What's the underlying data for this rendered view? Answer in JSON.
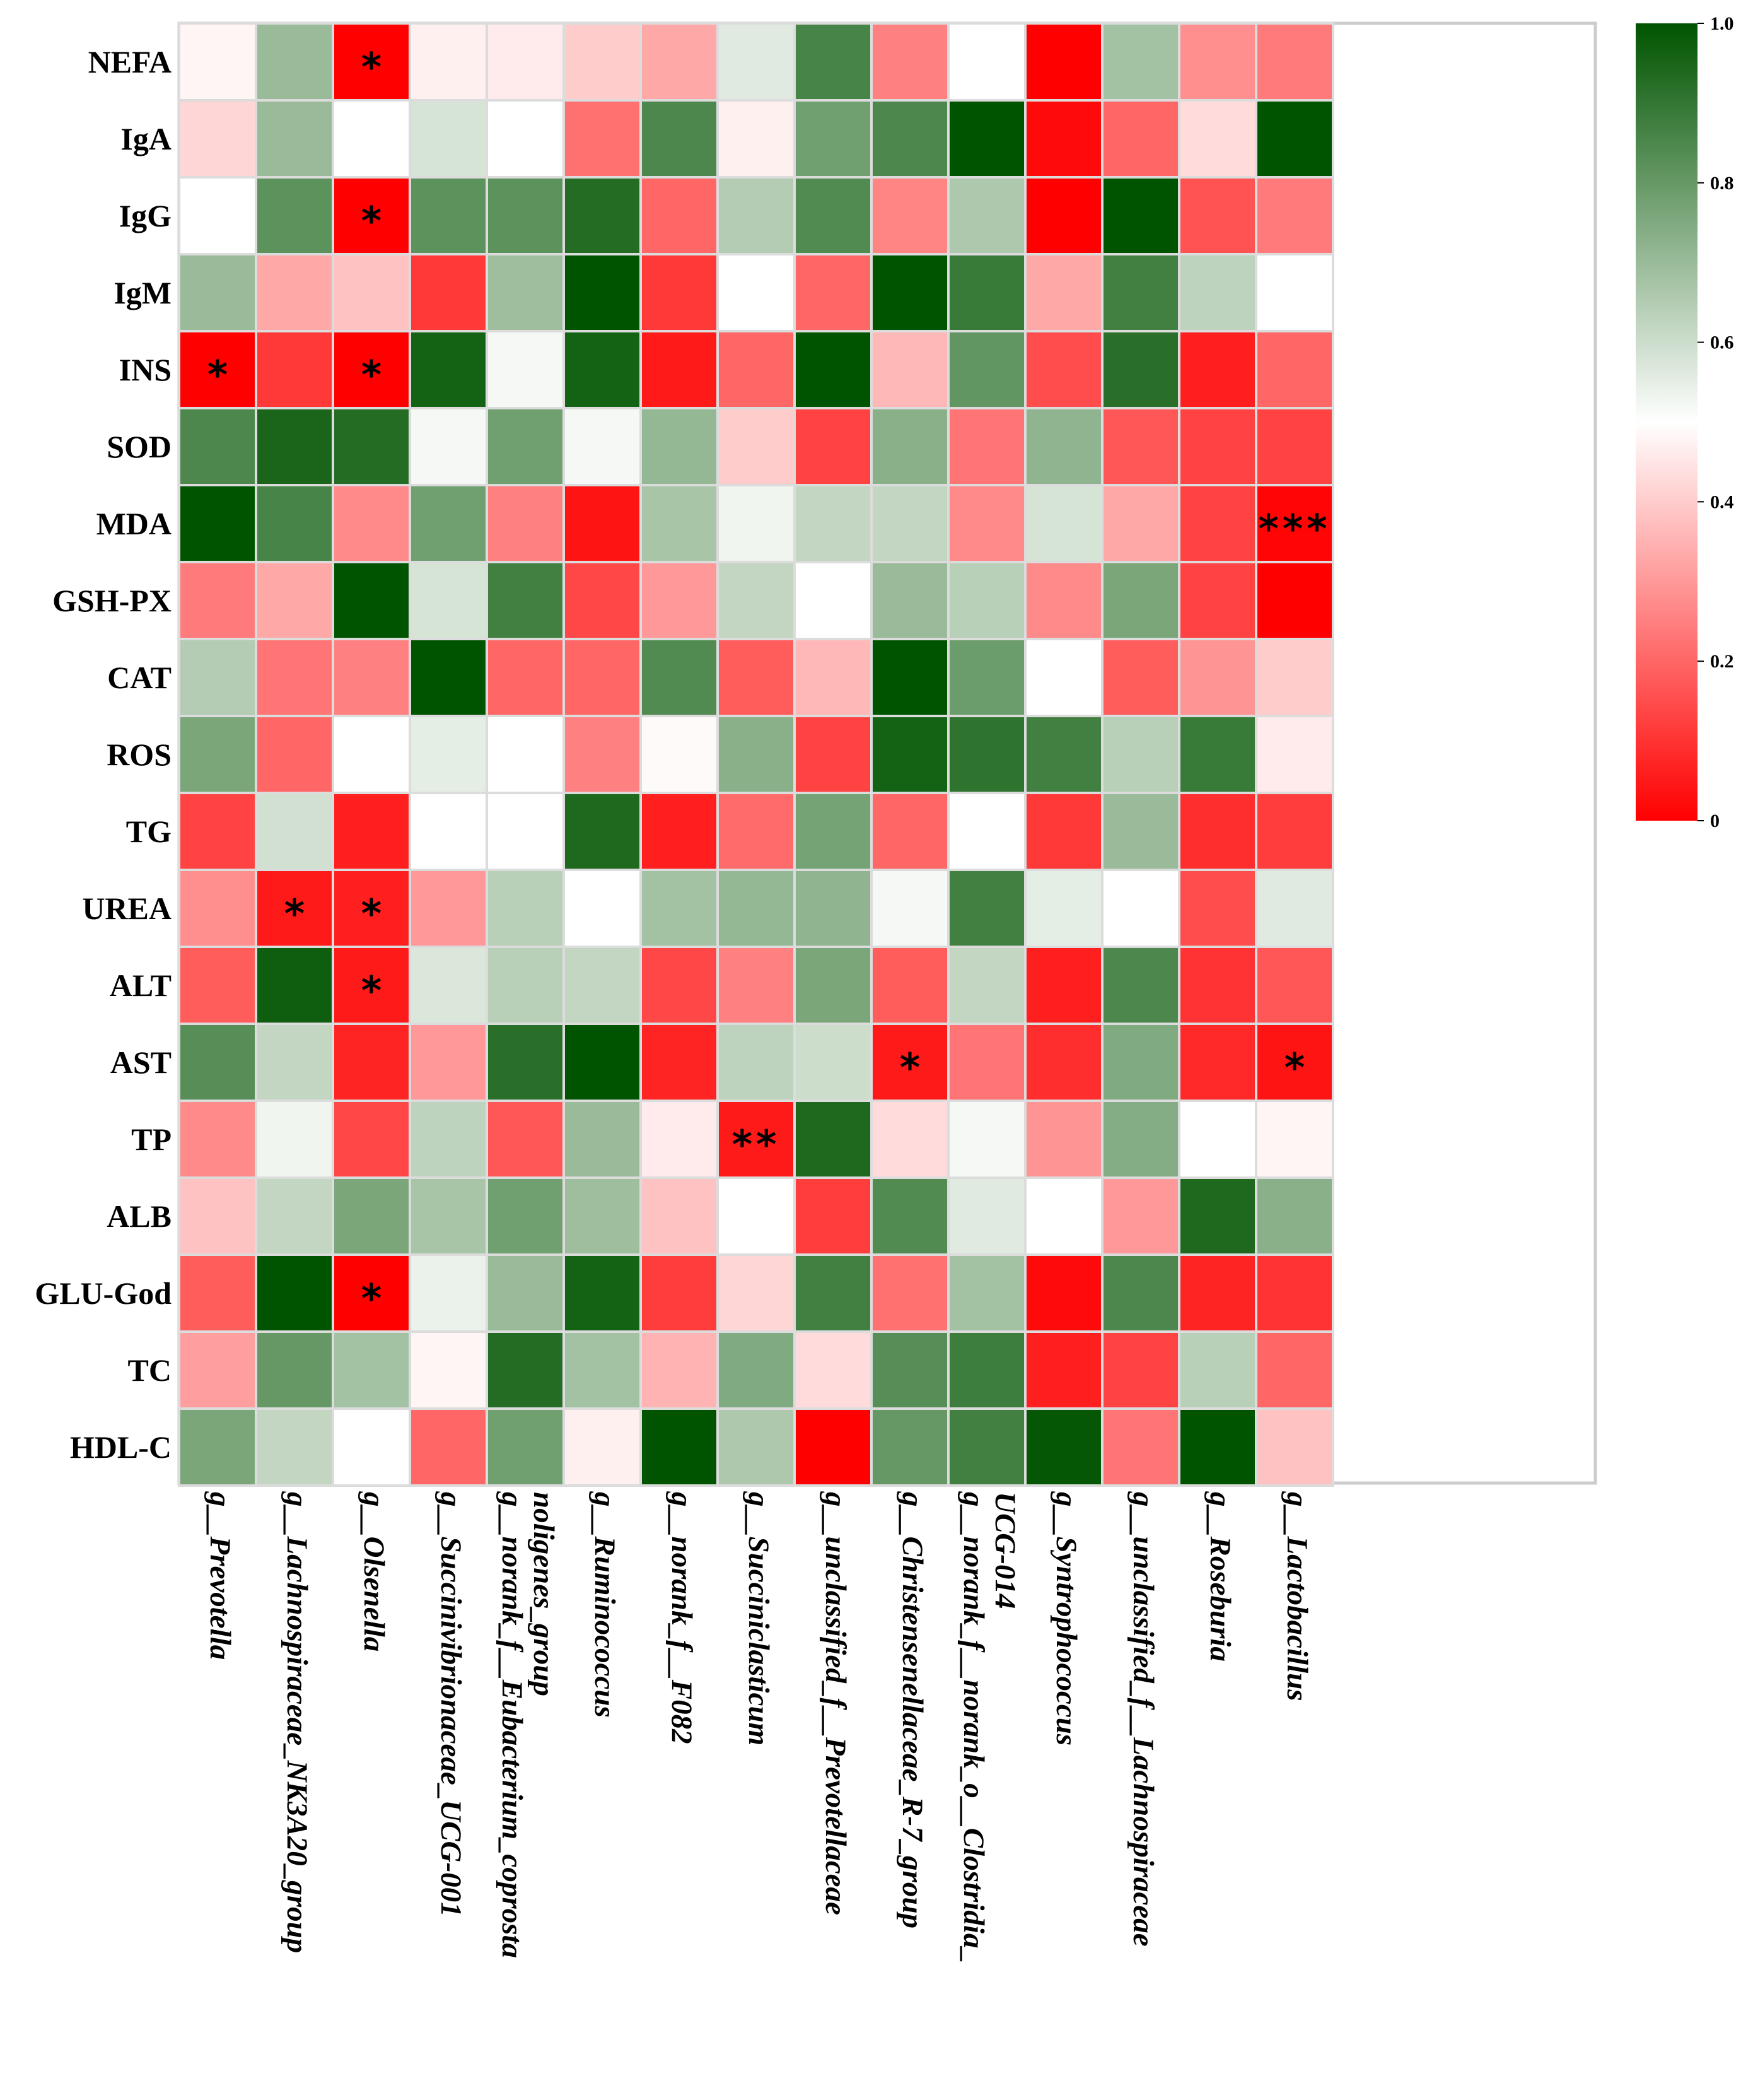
{
  "chart_data": {
    "type": "heatmap",
    "rows": [
      "NEFA",
      "IgA",
      "IgG",
      "IgM",
      "INS",
      "SOD",
      "MDA",
      "GSH-PX",
      "CAT",
      "ROS",
      "TG",
      "UREA",
      "ALT",
      "AST",
      "TP",
      "ALB",
      "GLU-God",
      "TC",
      "HDL-C"
    ],
    "columns": [
      [
        "g__Prevotella"
      ],
      [
        "g__Lachnospiraceae_NK3A20_group"
      ],
      [
        "g__Olsenella"
      ],
      [
        "g__Succinivibrionaceae_UCG-001"
      ],
      [
        "g__norank_f__Eubacterium_coprosta",
        "noligenes_group"
      ],
      [
        "g__Ruminococcus"
      ],
      [
        "g__norank_f__F082"
      ],
      [
        "g__Succiniclasticum"
      ],
      [
        "g__unclassified_f__Prevotellaceae"
      ],
      [
        "g__Christensenellaceae_R-7_group"
      ],
      [
        "g__norank_f__norank_o__Clostridia_",
        "UCG-014"
      ],
      [
        "g__Syntrophococcus"
      ],
      [
        "g__unclassified_f__Lachnospiraceae"
      ],
      [
        "g__Roseburia"
      ],
      [
        "g__Lactobacillus"
      ]
    ],
    "values": [
      [
        0.48,
        0.7,
        0.0,
        0.47,
        0.46,
        0.4,
        0.33,
        0.56,
        0.86,
        0.25,
        0.5,
        0.0,
        0.68,
        0.28,
        0.24
      ],
      [
        0.42,
        0.7,
        0.5,
        0.58,
        0.5,
        0.22,
        0.85,
        0.47,
        0.78,
        0.85,
        1.0,
        0.02,
        0.2,
        0.43,
        1.0
      ],
      [
        0.5,
        0.82,
        0.0,
        0.82,
        0.82,
        0.93,
        0.2,
        0.65,
        0.84,
        0.26,
        0.66,
        0.0,
        1.0,
        0.16,
        0.24
      ],
      [
        0.7,
        0.33,
        0.38,
        0.11,
        0.69,
        1.0,
        0.11,
        0.5,
        0.2,
        1.0,
        0.89,
        0.33,
        0.87,
        0.63,
        0.5
      ],
      [
        0.0,
        0.11,
        0.0,
        0.96,
        0.52,
        0.96,
        0.05,
        0.2,
        1.0,
        0.36,
        0.81,
        0.15,
        0.92,
        0.06,
        0.2
      ],
      [
        0.85,
        0.95,
        0.93,
        0.52,
        0.78,
        0.52,
        0.71,
        0.4,
        0.13,
        0.73,
        0.23,
        0.72,
        0.17,
        0.13,
        0.13
      ],
      [
        1.0,
        0.86,
        0.27,
        0.78,
        0.25,
        0.04,
        0.67,
        0.53,
        0.62,
        0.62,
        0.27,
        0.58,
        0.33,
        0.13,
        0.01
      ],
      [
        0.24,
        0.33,
        1.0,
        0.58,
        0.87,
        0.14,
        0.3,
        0.62,
        0.5,
        0.7,
        0.64,
        0.27,
        0.76,
        0.13,
        0.0
      ],
      [
        0.65,
        0.23,
        0.25,
        1.0,
        0.2,
        0.2,
        0.84,
        0.18,
        0.36,
        1.0,
        0.79,
        0.5,
        0.18,
        0.29,
        0.4
      ],
      [
        0.76,
        0.2,
        0.5,
        0.55,
        0.5,
        0.25,
        0.49,
        0.73,
        0.13,
        0.96,
        0.91,
        0.87,
        0.64,
        0.89,
        0.46
      ],
      [
        0.13,
        0.59,
        0.06,
        0.5,
        0.5,
        0.94,
        0.06,
        0.21,
        0.77,
        0.2,
        0.5,
        0.11,
        0.7,
        0.09,
        0.12
      ],
      [
        0.28,
        0.05,
        0.06,
        0.3,
        0.64,
        0.5,
        0.68,
        0.71,
        0.72,
        0.52,
        0.87,
        0.55,
        0.5,
        0.15,
        0.56
      ],
      [
        0.18,
        0.97,
        0.05,
        0.57,
        0.64,
        0.62,
        0.14,
        0.25,
        0.76,
        0.18,
        0.62,
        0.06,
        0.85,
        0.1,
        0.17
      ],
      [
        0.83,
        0.62,
        0.07,
        0.3,
        0.92,
        1.0,
        0.07,
        0.63,
        0.6,
        0.05,
        0.23,
        0.09,
        0.75,
        0.08,
        0.04
      ],
      [
        0.27,
        0.53,
        0.14,
        0.63,
        0.17,
        0.7,
        0.46,
        0.05,
        0.94,
        0.43,
        0.52,
        0.29,
        0.74,
        0.5,
        0.48
      ],
      [
        0.38,
        0.62,
        0.76,
        0.67,
        0.78,
        0.69,
        0.38,
        0.5,
        0.12,
        0.84,
        0.56,
        0.5,
        0.3,
        0.94,
        0.73
      ],
      [
        0.18,
        1.0,
        0.0,
        0.54,
        0.7,
        0.96,
        0.12,
        0.42,
        0.87,
        0.22,
        0.68,
        0.02,
        0.85,
        0.07,
        0.1
      ],
      [
        0.31,
        0.8,
        0.68,
        0.48,
        0.93,
        0.68,
        0.35,
        0.75,
        0.43,
        0.83,
        0.88,
        0.06,
        0.13,
        0.64,
        0.2
      ],
      [
        0.76,
        0.62,
        0.5,
        0.2,
        0.78,
        0.47,
        1.0,
        0.66,
        0.0,
        0.8,
        0.87,
        0.99,
        0.23,
        1.0,
        0.38
      ]
    ],
    "significance": [
      {
        "row": 0,
        "col": 2,
        "label": "*"
      },
      {
        "row": 2,
        "col": 2,
        "label": "*"
      },
      {
        "row": 4,
        "col": 0,
        "label": "*"
      },
      {
        "row": 4,
        "col": 2,
        "label": "*"
      },
      {
        "row": 6,
        "col": 14,
        "label": "***"
      },
      {
        "row": 11,
        "col": 1,
        "label": "*"
      },
      {
        "row": 11,
        "col": 2,
        "label": "*"
      },
      {
        "row": 12,
        "col": 2,
        "label": "*"
      },
      {
        "row": 13,
        "col": 9,
        "label": "*"
      },
      {
        "row": 13,
        "col": 14,
        "label": "*"
      },
      {
        "row": 14,
        "col": 7,
        "label": "**"
      },
      {
        "row": 16,
        "col": 2,
        "label": "*"
      }
    ],
    "colorscale": {
      "range": [
        0,
        1
      ],
      "stops": [
        {
          "value": 0.0,
          "color": "#ff0000"
        },
        {
          "value": 0.5,
          "color": "#ffffff"
        },
        {
          "value": 1.0,
          "color": "#005400"
        }
      ],
      "ticks": [
        "0",
        "0.2",
        "0.4",
        "0.6",
        "0.8",
        "1.0"
      ]
    },
    "grid_line_color": "#dcdcdc",
    "legend_position": "right"
  }
}
